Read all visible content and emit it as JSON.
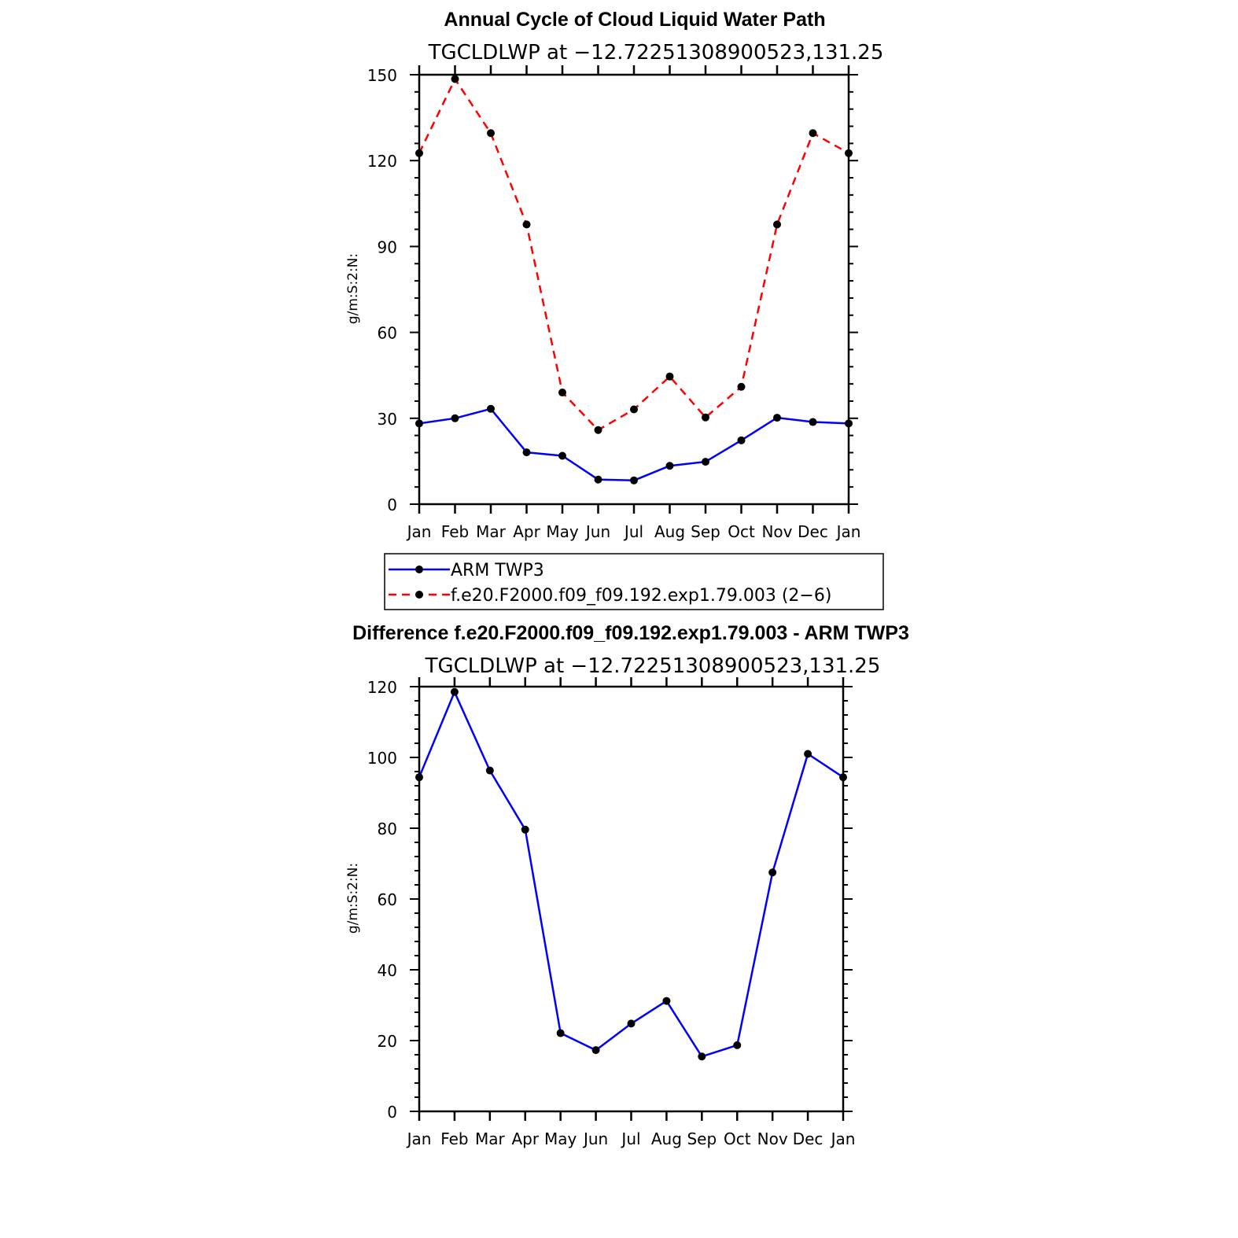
{
  "chart_data": [
    {
      "type": "line",
      "title": "Annual Cycle of Cloud Liquid Water Path",
      "subtitle": "TGCLDLWP at −12.72251308900523,131.25",
      "ylabel": "g/m:S:2:N:",
      "xlabel": "",
      "categories": [
        "Jan",
        "Feb",
        "Mar",
        "Apr",
        "May",
        "Jun",
        "Jul",
        "Aug",
        "Sep",
        "Oct",
        "Nov",
        "Dec",
        "Jan"
      ],
      "ylim": [
        0,
        150
      ],
      "yticks": [
        0,
        30,
        60,
        90,
        120,
        150
      ],
      "grid": false,
      "legend_position": "bottom",
      "series": [
        {
          "name": "ARM TWP3",
          "color": "#0000ff",
          "dash": "solid",
          "values": [
            28.2,
            30.0,
            33.3,
            18.1,
            16.9,
            8.6,
            8.3,
            13.4,
            14.8,
            22.3,
            30.2,
            28.7,
            28.2
          ]
        },
        {
          "name": "f.e20.F2000.f09_f09.192.exp1.79.003 (2−6)",
          "color": "#ff0000",
          "dash": "dashed",
          "values": [
            122.6,
            148.5,
            129.6,
            97.7,
            39.0,
            25.9,
            33.1,
            44.6,
            30.3,
            41.0,
            97.7,
            129.6,
            122.6
          ]
        }
      ]
    },
    {
      "type": "line",
      "title": "Difference f.e20.F2000.f09_f09.192.exp1.79.003 - ARM TWP3",
      "subtitle": "TGCLDLWP at −12.72251308900523,131.25",
      "ylabel": "g/m:S:2:N:",
      "xlabel": "",
      "categories": [
        "Jan",
        "Feb",
        "Mar",
        "Apr",
        "May",
        "Jun",
        "Jul",
        "Aug",
        "Sep",
        "Oct",
        "Nov",
        "Dec",
        "Jan"
      ],
      "ylim": [
        0,
        120
      ],
      "yticks": [
        0,
        20,
        40,
        60,
        80,
        100,
        120
      ],
      "grid": false,
      "series": [
        {
          "color": "#0000ff",
          "dash": "solid",
          "values": [
            94.4,
            118.5,
            96.3,
            79.6,
            22.1,
            17.3,
            24.8,
            31.2,
            15.5,
            18.7,
            67.5,
            101.0,
            94.4
          ]
        }
      ]
    }
  ]
}
